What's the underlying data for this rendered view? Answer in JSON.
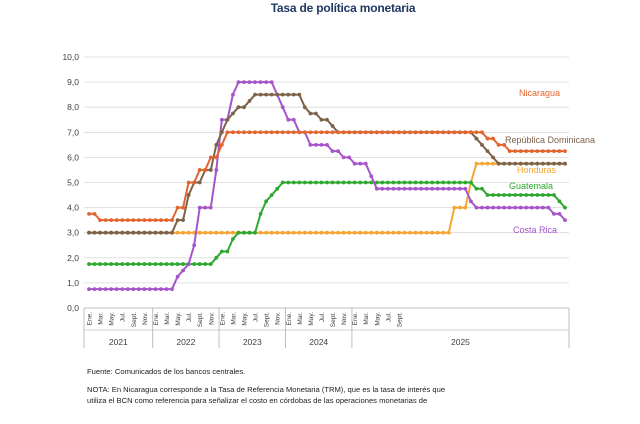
{
  "chart_data": {
    "type": "line",
    "title": "Tasa de política monetaria",
    "ylim": [
      0,
      10
    ],
    "yticks": [
      "0,0",
      "1,0",
      "2,0",
      "3,0",
      "4,0",
      "5,0",
      "6,0",
      "7,0",
      "8,0",
      "9,0",
      "10,0"
    ],
    "x_month_labels": [
      "Ene.",
      "Mar.",
      "May.",
      "Jul.",
      "Sept.",
      "Nov.",
      "Ene.",
      "Mar.",
      "May.",
      "Jul.",
      "Sept.",
      "Nov.",
      "Ene.",
      "Mar.",
      "May.",
      "Jul.",
      "Sept.",
      "Nov.",
      "Ene.",
      "Mar.",
      "May.",
      "Jul.",
      "Sept.",
      "Nov.",
      "Ene.",
      "Mar.",
      "May.",
      "Jul.",
      "Sept."
    ],
    "years": [
      "2021",
      "2022",
      "2023",
      "2024",
      "2025"
    ],
    "x_start": "2021-01",
    "x_end": "2025-09",
    "grid": "horizontal",
    "colors": {
      "Nicaragua": "#e2652f",
      "República Dominicana": "#7b6248",
      "Honduras": "#f5a533",
      "Guatemala": "#2ea82f",
      "Costa Rica": "#a555c9"
    },
    "series": [
      {
        "name": "Nicaragua",
        "values": [
          3.75,
          3.75,
          3.5,
          3.5,
          3.5,
          3.5,
          3.5,
          3.5,
          3.5,
          3.5,
          3.5,
          3.5,
          3.5,
          3.5,
          3.5,
          3.5,
          4.0,
          4.0,
          5.0,
          5.0,
          5.5,
          5.5,
          6.0,
          6.0,
          6.5,
          7.0,
          7.0,
          7.0,
          7.0,
          7.0,
          7.0,
          7.0,
          7.0,
          7.0,
          7.0,
          7.0,
          7.0,
          7.0,
          7.0,
          7.0,
          7.0,
          7.0,
          7.0,
          7.0,
          7.0,
          7.0,
          7.0,
          7.0,
          7.0,
          7.0,
          7.0,
          7.0,
          7.0,
          7.0,
          7.0,
          7.0,
          7.0,
          7.0,
          7.0,
          7.0,
          7.0,
          7.0,
          7.0,
          7.0,
          7.0,
          7.0,
          7.0,
          7.0,
          7.0,
          7.0,
          7.0,
          7.0,
          6.75,
          6.75,
          6.5,
          6.5,
          6.25,
          6.25,
          6.25,
          6.25,
          6.25,
          6.25,
          6.25,
          6.25,
          6.25,
          6.25,
          6.25
        ]
      },
      {
        "name": "República Dominicana",
        "values": [
          3.0,
          3.0,
          3.0,
          3.0,
          3.0,
          3.0,
          3.0,
          3.0,
          3.0,
          3.0,
          3.0,
          3.0,
          3.0,
          3.0,
          3.0,
          3.0,
          3.5,
          3.5,
          4.5,
          5.0,
          5.0,
          5.5,
          5.5,
          6.5,
          7.0,
          7.5,
          7.75,
          8.0,
          8.0,
          8.25,
          8.5,
          8.5,
          8.5,
          8.5,
          8.5,
          8.5,
          8.5,
          8.5,
          8.5,
          8.0,
          7.75,
          7.75,
          7.5,
          7.5,
          7.25,
          7.0,
          7.0,
          7.0,
          7.0,
          7.0,
          7.0,
          7.0,
          7.0,
          7.0,
          7.0,
          7.0,
          7.0,
          7.0,
          7.0,
          7.0,
          7.0,
          7.0,
          7.0,
          7.0,
          7.0,
          7.0,
          7.0,
          7.0,
          7.0,
          7.0,
          6.75,
          6.5,
          6.25,
          6.0,
          5.75,
          5.75,
          5.75,
          5.75,
          5.75,
          5.75,
          5.75,
          5.75,
          5.75,
          5.75,
          5.75,
          5.75,
          5.75
        ]
      },
      {
        "name": "Honduras",
        "values": [
          3.0,
          3.0,
          3.0,
          3.0,
          3.0,
          3.0,
          3.0,
          3.0,
          3.0,
          3.0,
          3.0,
          3.0,
          3.0,
          3.0,
          3.0,
          3.0,
          3.0,
          3.0,
          3.0,
          3.0,
          3.0,
          3.0,
          3.0,
          3.0,
          3.0,
          3.0,
          3.0,
          3.0,
          3.0,
          3.0,
          3.0,
          3.0,
          3.0,
          3.0,
          3.0,
          3.0,
          3.0,
          3.0,
          3.0,
          3.0,
          3.0,
          3.0,
          3.0,
          3.0,
          3.0,
          3.0,
          3.0,
          3.0,
          3.0,
          3.0,
          3.0,
          3.0,
          3.0,
          3.0,
          3.0,
          3.0,
          3.0,
          3.0,
          3.0,
          3.0,
          3.0,
          3.0,
          3.0,
          3.0,
          3.0,
          3.0,
          4.0,
          4.0,
          4.0,
          5.0,
          5.75,
          5.75,
          5.75,
          5.75,
          5.75,
          5.75,
          5.75,
          5.75,
          5.75,
          5.75,
          5.75,
          5.75,
          5.75,
          5.75,
          5.75,
          5.75,
          5.75
        ]
      },
      {
        "name": "Guatemala",
        "values": [
          1.75,
          1.75,
          1.75,
          1.75,
          1.75,
          1.75,
          1.75,
          1.75,
          1.75,
          1.75,
          1.75,
          1.75,
          1.75,
          1.75,
          1.75,
          1.75,
          1.75,
          1.75,
          1.75,
          1.75,
          1.75,
          1.75,
          1.75,
          2.0,
          2.25,
          2.25,
          2.75,
          3.0,
          3.0,
          3.0,
          3.0,
          3.75,
          4.25,
          4.5,
          4.75,
          5.0,
          5.0,
          5.0,
          5.0,
          5.0,
          5.0,
          5.0,
          5.0,
          5.0,
          5.0,
          5.0,
          5.0,
          5.0,
          5.0,
          5.0,
          5.0,
          5.0,
          5.0,
          5.0,
          5.0,
          5.0,
          5.0,
          5.0,
          5.0,
          5.0,
          5.0,
          5.0,
          5.0,
          5.0,
          5.0,
          5.0,
          5.0,
          5.0,
          5.0,
          5.0,
          4.75,
          4.75,
          4.5,
          4.5,
          4.5,
          4.5,
          4.5,
          4.5,
          4.5,
          4.5,
          4.5,
          4.5,
          4.5,
          4.5,
          4.5,
          4.25,
          4.0
        ]
      },
      {
        "name": "Costa Rica",
        "values": [
          0.75,
          0.75,
          0.75,
          0.75,
          0.75,
          0.75,
          0.75,
          0.75,
          0.75,
          0.75,
          0.75,
          0.75,
          0.75,
          0.75,
          0.75,
          0.75,
          1.25,
          1.5,
          1.75,
          2.5,
          4.0,
          4.0,
          4.0,
          5.5,
          7.5,
          7.5,
          8.5,
          9.0,
          9.0,
          9.0,
          9.0,
          9.0,
          9.0,
          9.0,
          8.5,
          8.0,
          7.5,
          7.5,
          7.0,
          7.0,
          6.5,
          6.5,
          6.5,
          6.5,
          6.25,
          6.25,
          6.0,
          6.0,
          5.75,
          5.75,
          5.75,
          5.25,
          4.75,
          4.75,
          4.75,
          4.75,
          4.75,
          4.75,
          4.75,
          4.75,
          4.75,
          4.75,
          4.75,
          4.75,
          4.75,
          4.75,
          4.75,
          4.75,
          4.75,
          4.25,
          4.0,
          4.0,
          4.0,
          4.0,
          4.0,
          4.0,
          4.0,
          4.0,
          4.0,
          4.0,
          4.0,
          4.0,
          4.0,
          4.0,
          3.75,
          3.75,
          3.5
        ]
      }
    ]
  },
  "notes": {
    "source": "Fuente: Comunicados de los bancos centrales.",
    "note_line1": "NOTA: En Nicaragua corresponde a la Tasa de Referencia Monetaria (TRM), que es la tasa de interés que",
    "note_line2": "utiliza el BCN como referencia para señalizar el costo en córdobas de las operaciones monetarias de"
  }
}
